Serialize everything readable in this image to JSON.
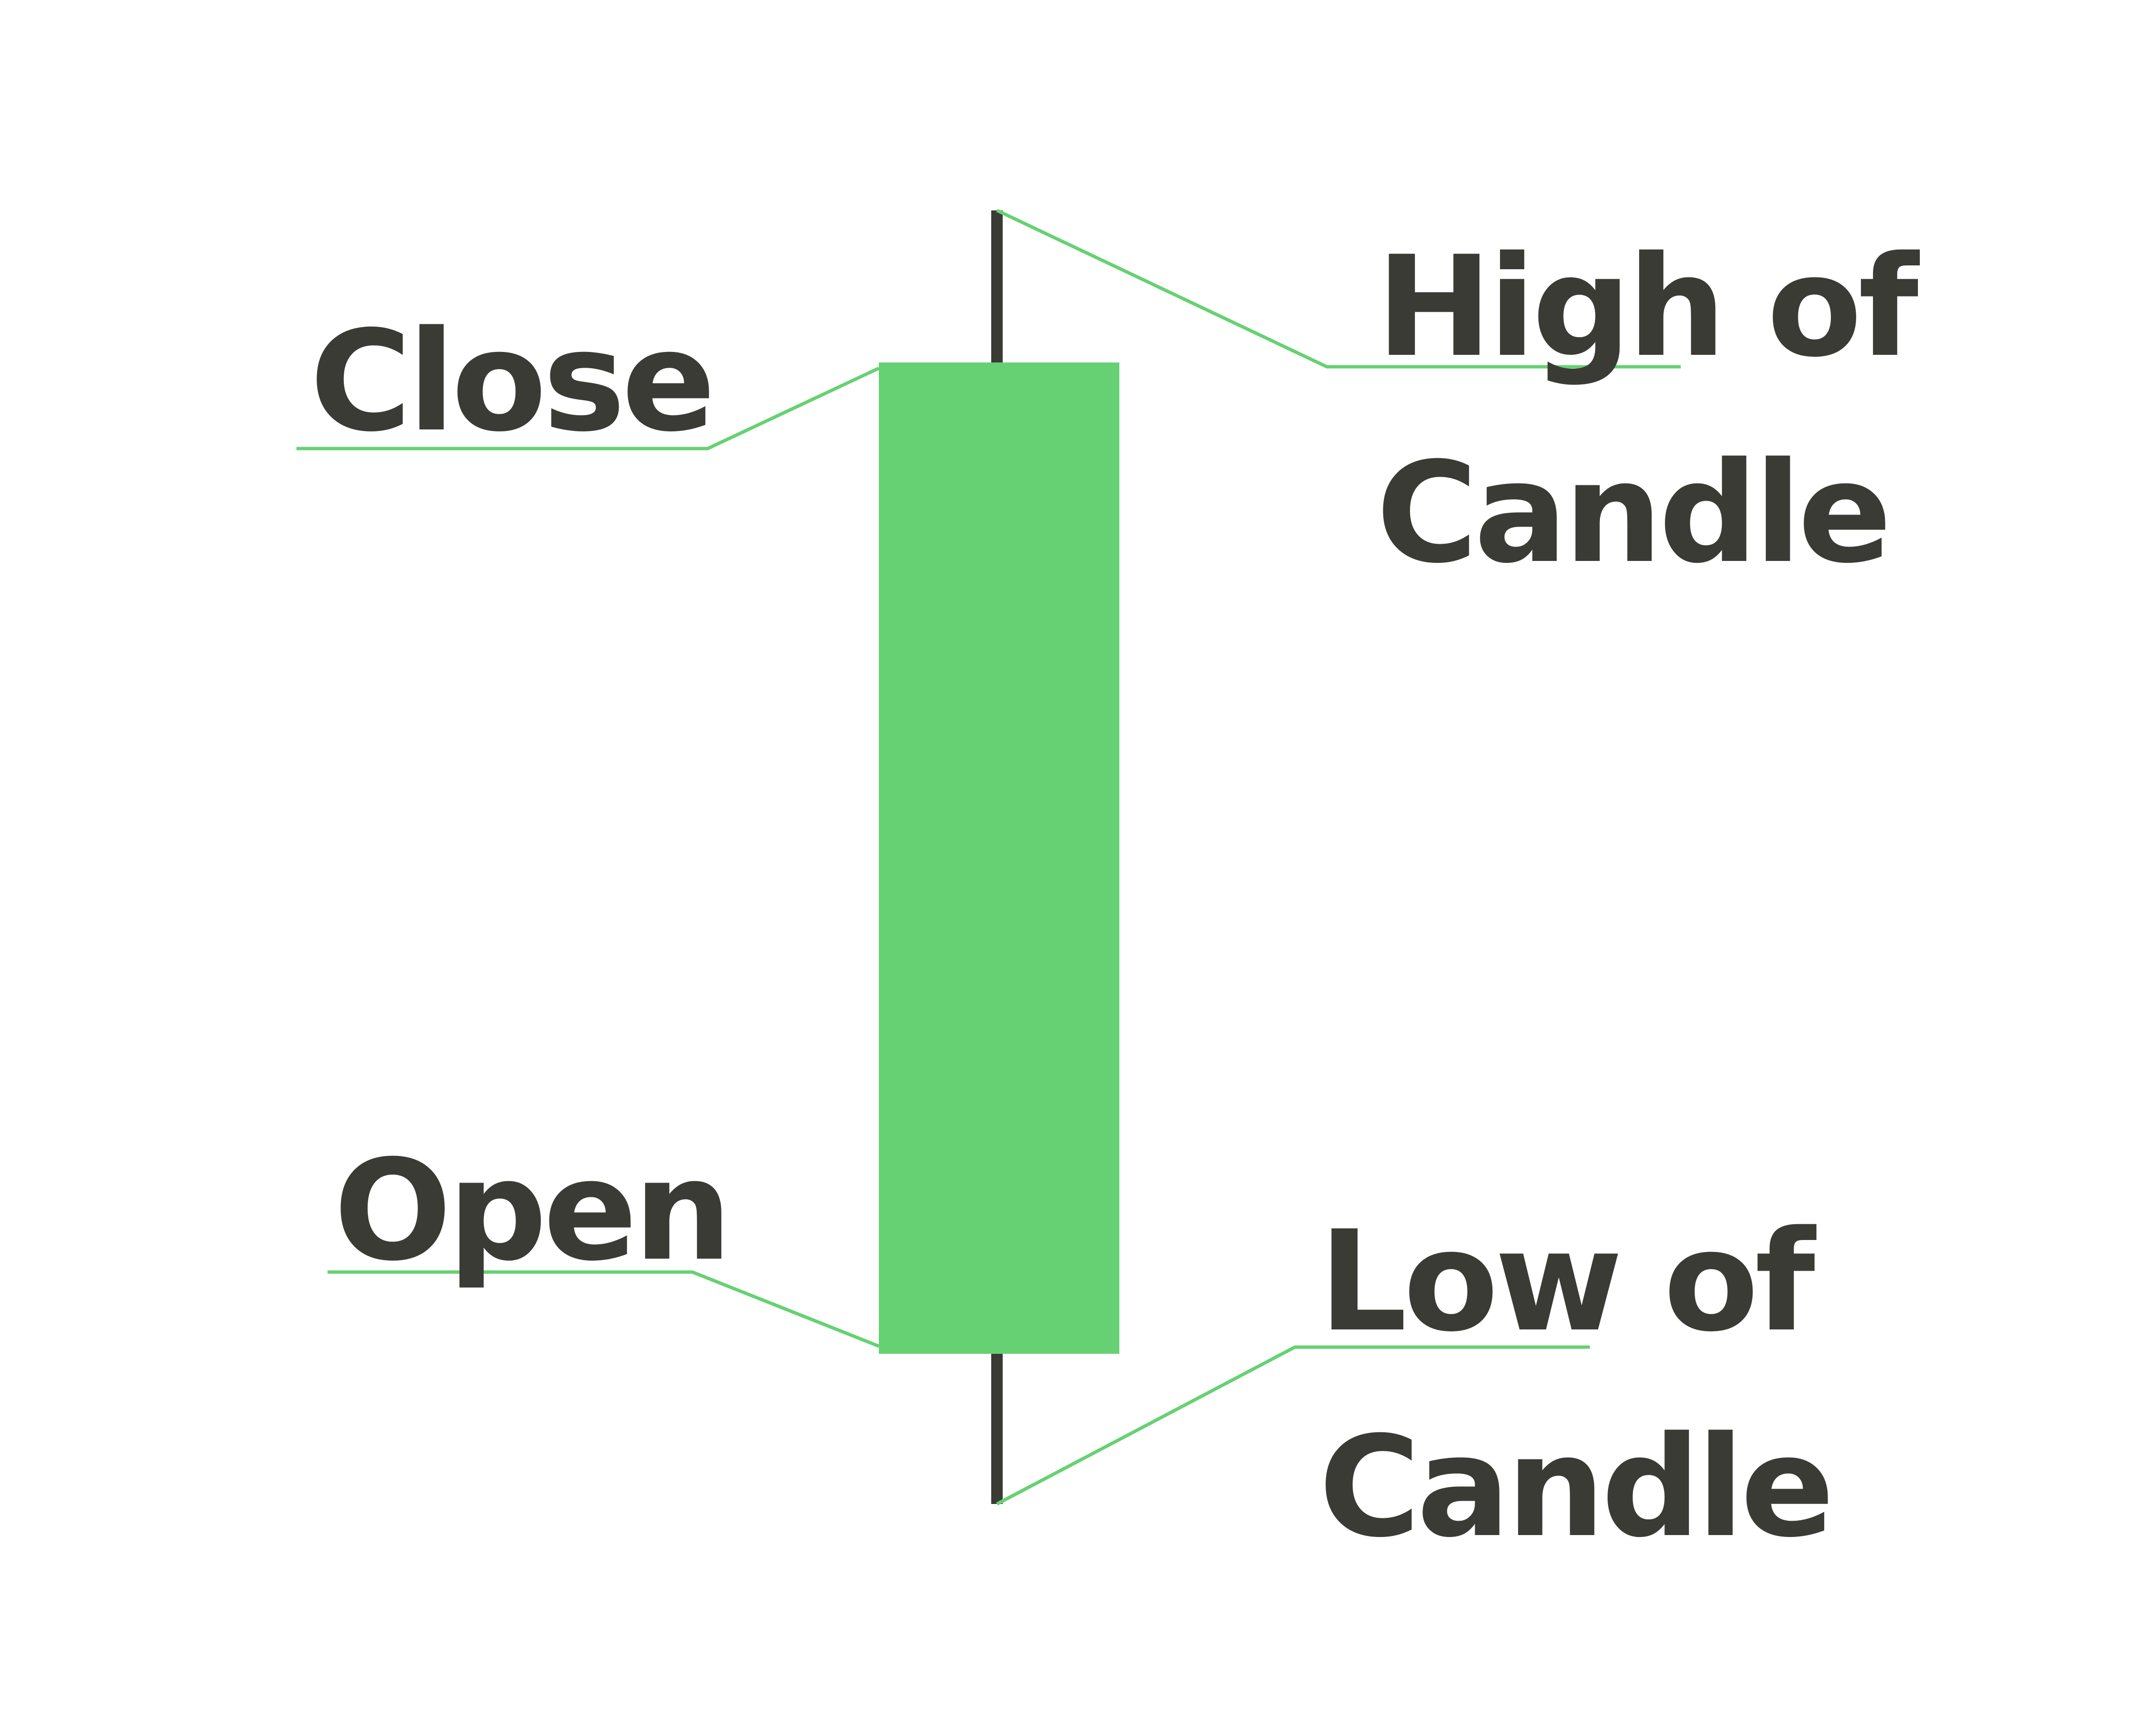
{
  "colors": {
    "background": "#ffffff",
    "candle_body": "#66d173",
    "wick": "#3b3b36",
    "leader_line": "#66d173",
    "text": "#3b3b36"
  },
  "labels": {
    "close": "Close",
    "open": "Open",
    "high_line1": "High of",
    "high_line2": "Candle",
    "low_line1": "Low of",
    "low_line2": "Candle"
  }
}
